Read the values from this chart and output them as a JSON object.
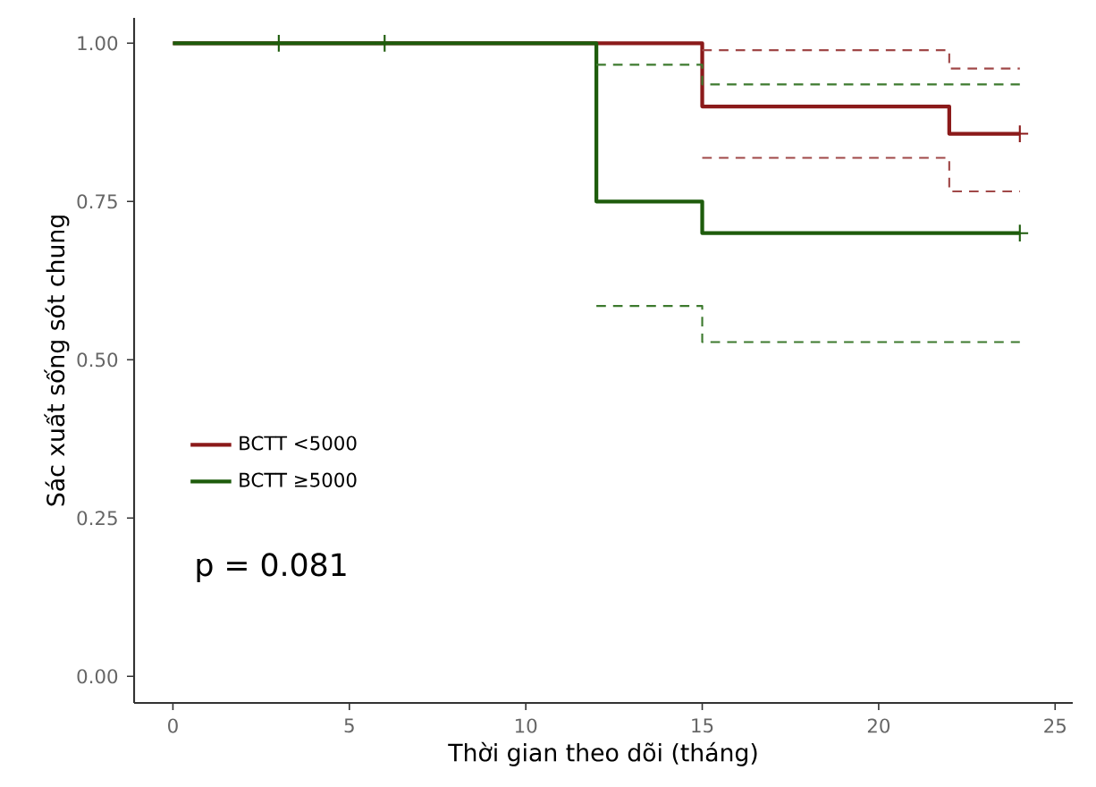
{
  "chart_data": {
    "type": "step",
    "xlabel": "Thời gian theo dõi (tháng)",
    "ylabel": "Sác xuất sống sót chung",
    "annotations": [
      "p = 0.081"
    ],
    "series": [
      {
        "name": "BCTT <5000",
        "color": "#8b1a1a",
        "x": [
          0,
          15,
          22,
          24
        ],
        "values": [
          1,
          0.9,
          0.857,
          0.857
        ]
      },
      {
        "name": "BCTT ≥5000",
        "color": "#1e5c0c",
        "x": [
          0,
          12,
          15,
          24
        ],
        "values": [
          1,
          0.75,
          0.7,
          0.7
        ]
      },
      {
        "color": "#a04848",
        "line_style": "dashed",
        "x": [
          15,
          22,
          24
        ],
        "values": [
          0.989,
          0.96,
          0.96
        ]
      },
      {
        "color": "#a04848",
        "line_style": "dashed",
        "x": [
          15,
          22,
          24
        ],
        "values": [
          0.819,
          0.766,
          0.766
        ]
      },
      {
        "color": "#3d7a2e",
        "line_style": "dashed",
        "x": [
          12,
          15,
          24
        ],
        "values": [
          0.966,
          0.935,
          0.935
        ]
      },
      {
        "color": "#3d7a2e",
        "line_style": "dashed",
        "x": [
          12,
          15,
          24
        ],
        "values": [
          0.585,
          0.528,
          0.528
        ]
      },
      {
        "type": "scatter",
        "marker": "cross",
        "color": "#8b1a1a",
        "x": [
          24
        ],
        "values": [
          0.857
        ]
      },
      {
        "type": "scatter",
        "marker": "cross",
        "color": "#1e5c0c",
        "x": [
          3,
          6,
          24
        ],
        "values": [
          1,
          1,
          0.7
        ]
      }
    ],
    "xlim": [
      -1.1,
      25.5
    ],
    "ylim": [
      -0.042,
      1.04
    ],
    "xticks": [
      0,
      5,
      10,
      15,
      20,
      25
    ],
    "yticks": [
      {
        "value": 0,
        "label": "0.00"
      },
      {
        "value": 0.25,
        "label": "0.25"
      },
      {
        "value": 0.5,
        "label": "0.50"
      },
      {
        "value": 0.75,
        "label": "0.75"
      },
      {
        "value": 1,
        "label": "1.00"
      }
    ],
    "grid": false,
    "legend": "left"
  }
}
